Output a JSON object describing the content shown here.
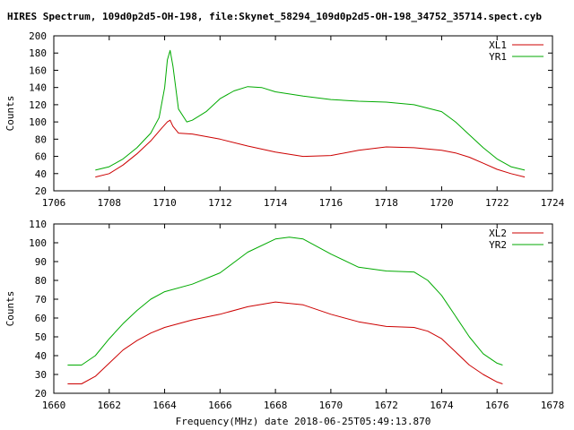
{
  "title": "HIRES Spectrum, 109d0p2d5-OH-198, file:Skynet_58294_109d0p2d5-OH-198_34752_35714.spect.cyb",
  "xlabel": "Frequency(MHz) date 2018-06-25T05:49:13.870",
  "colors": {
    "red": "#cc0000",
    "green": "#00aa00"
  },
  "chart_data": [
    {
      "type": "line",
      "ylabel": "Counts",
      "xlim": [
        1706,
        1724
      ],
      "ylim": [
        20,
        200
      ],
      "xticks": [
        "1706",
        "1708",
        "1710",
        "1712",
        "1714",
        "1716",
        "1718",
        "1720",
        "1722",
        "1724"
      ],
      "yticks": [
        "20",
        "40",
        "60",
        "80",
        "100",
        "120",
        "140",
        "160",
        "180",
        "200"
      ],
      "legend": "top-right",
      "series": [
        {
          "name": "XL1",
          "color": "#cc0000",
          "x": [
            1707.5,
            1708.0,
            1708.5,
            1709.0,
            1709.5,
            1709.9,
            1710.1,
            1710.2,
            1710.3,
            1710.5,
            1711.0,
            1712.0,
            1713.0,
            1714.0,
            1715.0,
            1716.0,
            1717.0,
            1718.0,
            1719.0,
            1720.0,
            1720.5,
            1721.0,
            1721.5,
            1722.0,
            1722.5,
            1723.0
          ],
          "y": [
            36,
            40,
            50,
            63,
            78,
            93,
            100,
            102,
            95,
            87,
            86,
            80,
            72,
            65,
            60,
            61,
            67,
            71,
            70,
            67,
            64,
            59,
            52,
            45,
            40,
            36
          ]
        },
        {
          "name": "YR1",
          "color": "#00aa00",
          "x": [
            1707.5,
            1708.0,
            1708.5,
            1709.0,
            1709.5,
            1709.8,
            1710.0,
            1710.1,
            1710.2,
            1710.3,
            1710.5,
            1710.8,
            1711.0,
            1711.5,
            1712.0,
            1712.5,
            1713.0,
            1713.5,
            1714.0,
            1715.0,
            1716.0,
            1717.0,
            1718.0,
            1719.0,
            1720.0,
            1720.5,
            1721.0,
            1721.5,
            1722.0,
            1722.5,
            1723.0
          ],
          "y": [
            44,
            48,
            57,
            70,
            87,
            105,
            140,
            172,
            183,
            165,
            115,
            100,
            102,
            112,
            127,
            136,
            141,
            140,
            135,
            130,
            126,
            124,
            123,
            120,
            112,
            100,
            85,
            70,
            57,
            48,
            44
          ]
        }
      ]
    },
    {
      "type": "line",
      "ylabel": "Counts",
      "xlim": [
        1660,
        1678
      ],
      "ylim": [
        20,
        110
      ],
      "xticks": [
        "1660",
        "1662",
        "1664",
        "1666",
        "1668",
        "1670",
        "1672",
        "1674",
        "1676",
        "1678"
      ],
      "yticks": [
        "20",
        "30",
        "40",
        "50",
        "60",
        "70",
        "80",
        "90",
        "100",
        "110"
      ],
      "legend": "top-right",
      "series": [
        {
          "name": "XL2",
          "color": "#cc0000",
          "x": [
            1660.5,
            1661.0,
            1661.5,
            1662.0,
            1662.5,
            1663.0,
            1663.5,
            1664.0,
            1665.0,
            1666.0,
            1667.0,
            1668.0,
            1669.0,
            1670.0,
            1671.0,
            1672.0,
            1673.0,
            1673.5,
            1674.0,
            1674.5,
            1675.0,
            1675.5,
            1676.0,
            1676.2
          ],
          "y": [
            25,
            25,
            29,
            36,
            43,
            48,
            52,
            55,
            59,
            62,
            66,
            68.5,
            67,
            62,
            58,
            55.5,
            55,
            53,
            49,
            42,
            35,
            30,
            26,
            25
          ]
        },
        {
          "name": "YR2",
          "color": "#00aa00",
          "x": [
            1660.5,
            1661.0,
            1661.5,
            1662.0,
            1662.5,
            1663.0,
            1663.5,
            1664.0,
            1665.0,
            1666.0,
            1667.0,
            1668.0,
            1668.5,
            1669.0,
            1670.0,
            1671.0,
            1672.0,
            1673.0,
            1673.5,
            1674.0,
            1674.5,
            1675.0,
            1675.5,
            1676.0,
            1676.2
          ],
          "y": [
            35,
            35,
            40,
            49,
            57,
            64,
            70,
            74,
            78,
            84,
            95,
            102,
            103,
            102,
            94,
            87,
            85,
            84.5,
            80,
            72,
            61,
            50,
            41,
            36,
            35
          ]
        }
      ]
    }
  ]
}
